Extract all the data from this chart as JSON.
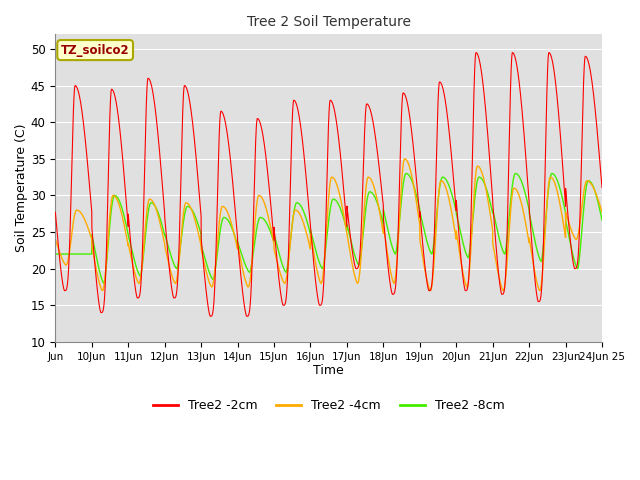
{
  "title": "Tree 2 Soil Temperature",
  "xlabel": "Time",
  "ylabel": "Soil Temperature (C)",
  "ylim": [
    10,
    52
  ],
  "xlim": [
    0,
    15
  ],
  "yticks": [
    10,
    15,
    20,
    25,
    30,
    35,
    40,
    45,
    50
  ],
  "bg_color": "#e0e0e0",
  "annotation_text": "TZ_soilco2",
  "annotation_color": "#990000",
  "annotation_bg": "#ffffcc",
  "annotation_border": "#aaa800",
  "line_colors": {
    "2cm": "#ff0000",
    "4cm": "#ffaa00",
    "8cm": "#44ee00"
  },
  "legend_labels": [
    "Tree2 -2cm",
    "Tree2 -4cm",
    "Tree2 -8cm"
  ],
  "x_tick_labels": [
    "Jun",
    "10Jun",
    "11Jun",
    "12Jun",
    "13Jun",
    "14Jun",
    "15Jun",
    "16Jun",
    "17Jun",
    "18Jun",
    "19Jun",
    "20Jun",
    "21Jun",
    "22Jun",
    "23Jun",
    "24Jun 25"
  ],
  "num_days": 15,
  "day_maxima_2cm": [
    45,
    44.5,
    46,
    45,
    41.5,
    40.5,
    43,
    43,
    42.5,
    44,
    45.5,
    49.5,
    49.5,
    49.5,
    49
  ],
  "day_minima_2cm": [
    17,
    14,
    16,
    16,
    13.5,
    13.5,
    15,
    15,
    20,
    16.5,
    17,
    17,
    16.5,
    15.5,
    20
  ],
  "day_maxima_4cm": [
    28,
    30,
    29.5,
    29,
    28.5,
    30,
    28,
    32.5,
    32.5,
    35,
    32,
    34,
    31,
    32.5,
    32
  ],
  "day_minima_4cm": [
    20.5,
    17,
    18,
    18,
    17.5,
    17.5,
    18,
    18,
    18,
    18,
    17,
    17.5,
    17,
    17,
    24
  ],
  "day_maxima_8cm": [
    22,
    30,
    29,
    28.5,
    27,
    27,
    29,
    29.5,
    30.5,
    33,
    32.5,
    32.5,
    33,
    33,
    32
  ],
  "day_minima_8cm": [
    22,
    18,
    19,
    20,
    18.5,
    19.5,
    19.5,
    20,
    20.5,
    22,
    22,
    21.5,
    22,
    21,
    20
  ]
}
